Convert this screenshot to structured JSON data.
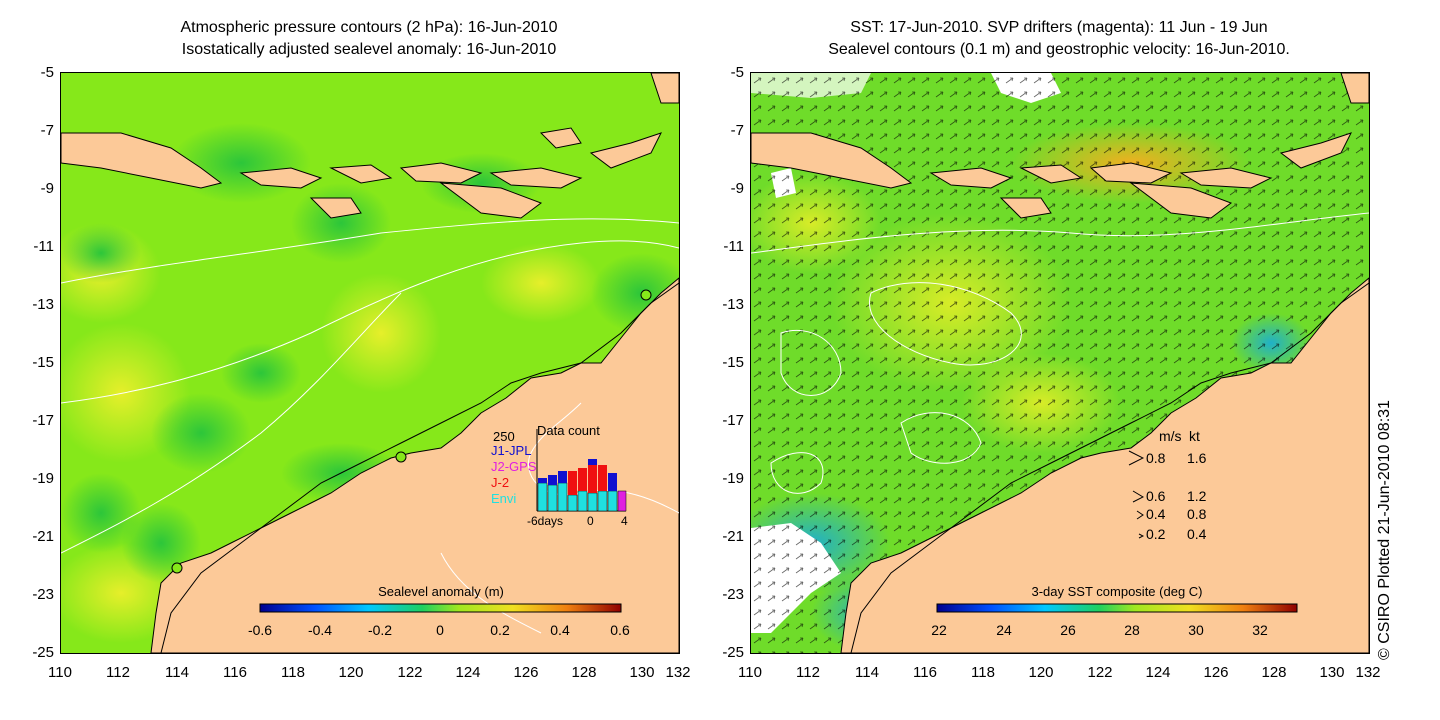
{
  "left_panel": {
    "title_line1": "Atmospheric pressure contours (2 hPa): 16-Jun-2010",
    "title_line2": "Isostatically adjusted sealevel anomaly: 16-Jun-2010",
    "colorbar_label": "Sealevel anomaly (m)",
    "colorbar_ticks": [
      "-0.6",
      "-0.4",
      "-0.2",
      "0",
      "0.2",
      "0.4",
      "0.6"
    ],
    "data_count": {
      "title": "Data count",
      "ymax_label": "250",
      "legend": [
        {
          "name": "J1-JPL",
          "color": "#1010d0"
        },
        {
          "name": "J2-GPS",
          "color": "#e020e0"
        },
        {
          "name": "J-2",
          "color": "#f01010"
        },
        {
          "name": "Envi",
          "color": "#20e0e0"
        }
      ],
      "x_labels": [
        "-6days",
        "0",
        "4"
      ]
    }
  },
  "right_panel": {
    "title_line1": "SST: 17-Jun-2010. SVP drifters (magenta): 11 Jun - 19 Jun",
    "title_line2": "Sealevel contours (0.1 m) and geostrophic velocity: 16-Jun-2010.",
    "colorbar_label": "3-day SST composite (deg C)",
    "colorbar_ticks": [
      "22",
      "24",
      "26",
      "28",
      "30",
      "32"
    ],
    "velocity_legend": {
      "header_ms": "m/s",
      "header_kt": "kt",
      "rows": [
        {
          "ms": "0.8",
          "kt": "1.6"
        },
        {
          "ms": "0.6",
          "kt": "1.2"
        },
        {
          "ms": "0.4",
          "kt": "0.8"
        },
        {
          "ms": "0.2",
          "kt": "0.4"
        }
      ]
    }
  },
  "axes": {
    "y_ticks": [
      "-5",
      "-7",
      "-9",
      "-11",
      "-13",
      "-15",
      "-17",
      "-19",
      "-21",
      "-23",
      "-25"
    ],
    "x_ticks": [
      "110",
      "112",
      "114",
      "116",
      "118",
      "120",
      "122",
      "124",
      "126",
      "128",
      "130",
      "132"
    ]
  },
  "credit": "© CSIRO Plotted 21-Jun-2010 08:31",
  "colors": {
    "land": "#fcc998",
    "sealevel_sea": "#86e81a",
    "sst_sea": "#6fdc2a"
  }
}
